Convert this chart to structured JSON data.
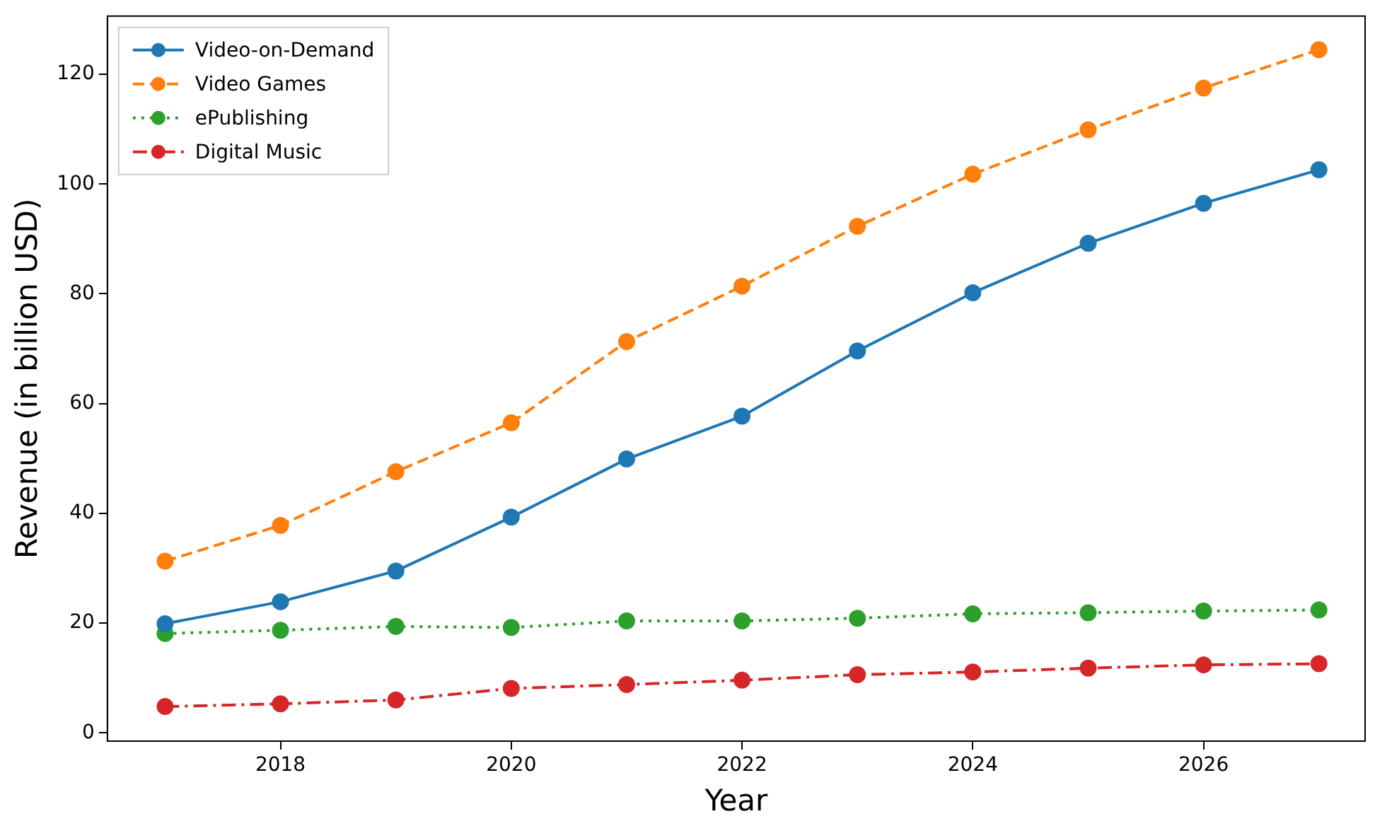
{
  "chart_data": {
    "type": "line",
    "xlabel": "Year",
    "ylabel": "Revenue (in billion USD)",
    "x": [
      2017,
      2018,
      2019,
      2020,
      2021,
      2022,
      2023,
      2024,
      2025,
      2026,
      2027
    ],
    "series": [
      {
        "name": "Video-on-Demand",
        "color": "#1f77b4",
        "line_style": "solid",
        "values": [
          19.9,
          23.9,
          29.5,
          39.3,
          49.9,
          57.7,
          69.6,
          80.2,
          89.2,
          96.5,
          102.6
        ]
      },
      {
        "name": "Video Games",
        "color": "#ff7f0e",
        "line_style": "dashed",
        "values": [
          31.3,
          37.8,
          47.6,
          56.5,
          71.3,
          81.4,
          92.3,
          101.8,
          109.9,
          117.5,
          124.5
        ]
      },
      {
        "name": "ePublishing",
        "color": "#2ca02c",
        "line_style": "dotted",
        "values": [
          18.1,
          18.7,
          19.4,
          19.2,
          20.4,
          20.4,
          20.9,
          21.7,
          21.9,
          22.2,
          22.4
        ]
      },
      {
        "name": "Digital Music",
        "color": "#d62728",
        "line_style": "dashdot",
        "values": [
          4.8,
          5.3,
          6.0,
          8.1,
          8.8,
          9.6,
          10.6,
          11.1,
          11.8,
          12.4,
          12.6
        ]
      }
    ],
    "xlim": [
      2016.5,
      2027.4
    ],
    "xticks": [
      2018,
      2020,
      2022,
      2024,
      2026
    ],
    "ylim": [
      -1.5,
      130.6
    ],
    "yticks": [
      0,
      20,
      40,
      60,
      80,
      100,
      120
    ],
    "grid": false,
    "legend": "top left",
    "marker": "circle"
  }
}
